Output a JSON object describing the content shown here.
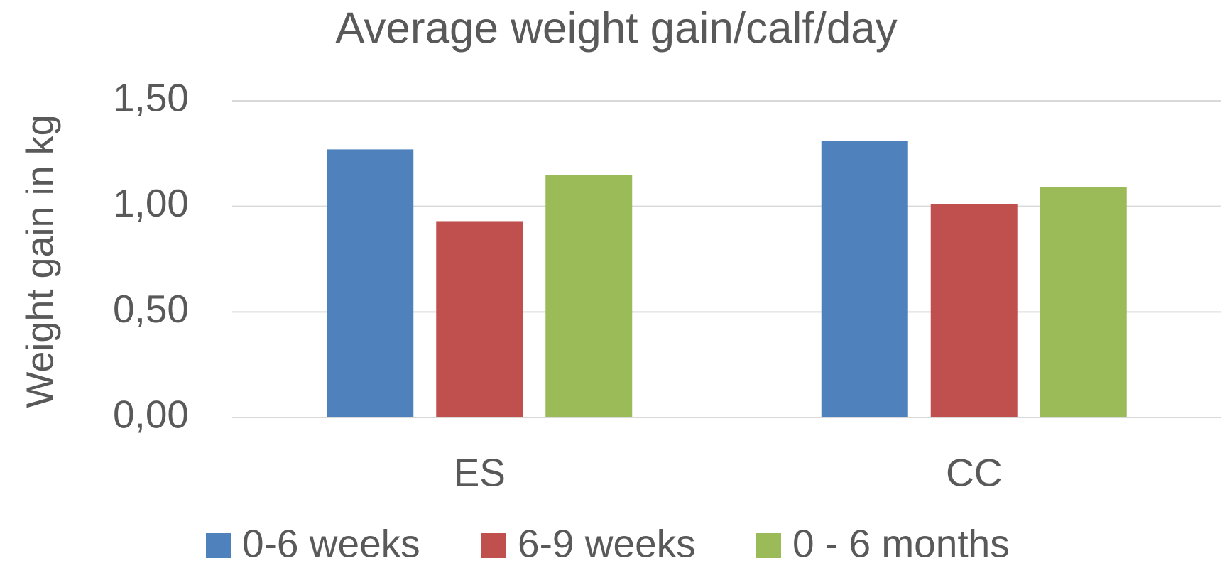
{
  "chart_data": {
    "type": "bar",
    "title": "Average weight gain/calf/day",
    "y_label": "Weight gain in kg",
    "categories": [
      "ES",
      "CC"
    ],
    "series": [
      {
        "name": "0-6 weeks",
        "color": "#4f81bd",
        "values": [
          1.27,
          1.31
        ]
      },
      {
        "name": "6-9 weeks",
        "color": "#c0504d",
        "values": [
          0.93,
          1.01
        ]
      },
      {
        "name": "0 - 6 months",
        "color": "#9bbb59",
        "values": [
          1.15,
          1.09
        ]
      }
    ],
    "ylim": [
      0,
      1.5
    ],
    "yticks": [
      {
        "value": 0,
        "label": "0,00"
      },
      {
        "value": 0.5,
        "label": "0,50"
      },
      {
        "value": 1,
        "label": "1,00"
      },
      {
        "value": 1.5,
        "label": "1,50"
      }
    ],
    "grid": true,
    "legend": "bottom"
  }
}
